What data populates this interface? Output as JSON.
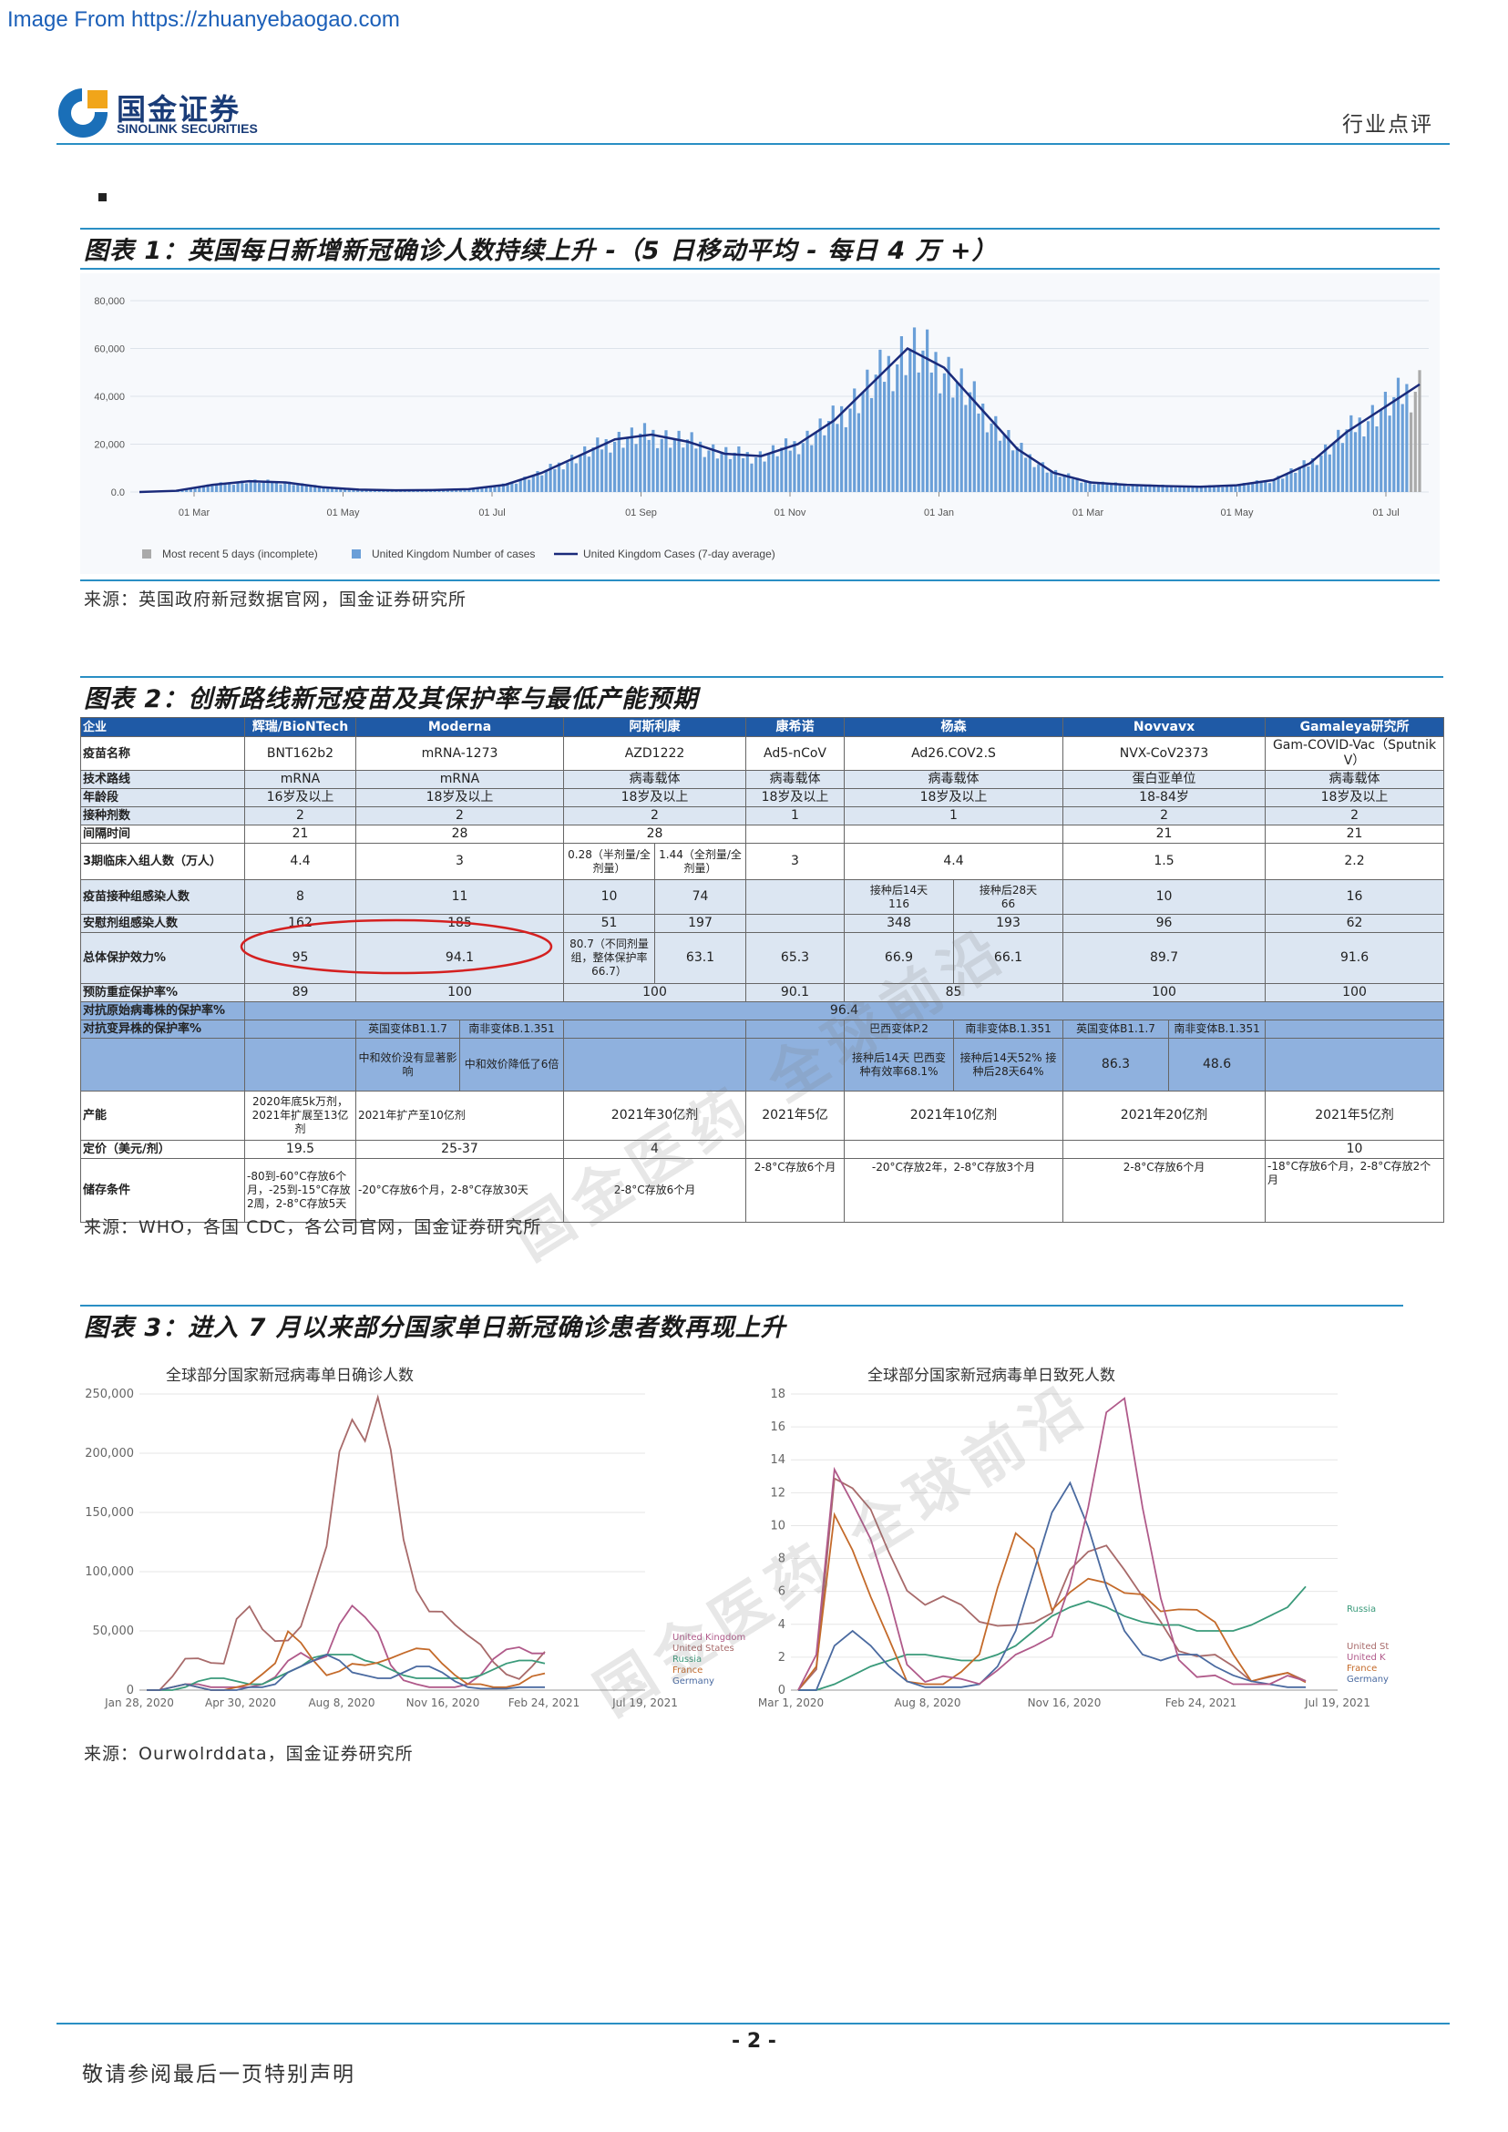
{
  "top_link": "Image From https://zhuanyebaogao.com",
  "header": {
    "logo_cn": "国金证券",
    "logo_en": "SINOLINK SECURITIES",
    "category": "行业点评"
  },
  "fig1": {
    "title": "图表 1：英国每日新增新冠确诊人数持续上升 -（5 日移动平均 - 每日 4 万 +）",
    "source": "来源：英国政府新冠数据官网，国金证券研究所",
    "chart_data": {
      "type": "bar",
      "x_ticks": [
        "01 Mar",
        "01 May",
        "01 Jul",
        "01 Sep",
        "01 Nov",
        "01 Jan",
        "01 Mar",
        "01 May",
        "01 Jul"
      ],
      "y_ticks": [
        "0.0",
        "20,000",
        "40,000",
        "60,000",
        "80,000"
      ],
      "ylim": [
        0,
        80000
      ],
      "legend": [
        "Most recent 5 days (incomplete)",
        "United Kingdom Number of cases",
        "United Kingdom Cases (7-day average)"
      ],
      "avg_series": [
        0,
        500,
        3000,
        4500,
        4000,
        2000,
        1000,
        700,
        800,
        1200,
        3000,
        8000,
        15000,
        22000,
        24000,
        21000,
        16000,
        15000,
        20000,
        30000,
        45000,
        60000,
        52000,
        35000,
        18000,
        8000,
        4000,
        3000,
        2500,
        2200,
        2800,
        5000,
        12000,
        25000,
        35000,
        45000
      ]
    }
  },
  "fig2": {
    "title": "图表 2：创新路线新冠疫苗及其保护率与最低产能预期",
    "source": "来源：WHO，各国 CDC，各公司官网，国金证券研究所",
    "watermark": "国金医药 全球前沿",
    "rows": {
      "r0": [
        "企业",
        "辉瑞/BioNTech",
        "Moderna",
        "阿斯利康",
        "康希诺",
        "杨森",
        "Novvavx",
        "Gamaleya研究所"
      ],
      "r1": [
        "疫苗名称",
        "BNT162b2",
        "mRNA-1273",
        "AZD1222",
        "Ad5-nCoV",
        "Ad26.COV2.S",
        "NVX-CoV2373",
        "Gam-COVID-Vac（Sputnik V）"
      ],
      "r2": [
        "技术路线",
        "mRNA",
        "mRNA",
        "病毒载体",
        "病毒载体",
        "病毒载体",
        "蛋白亚单位",
        "病毒载体"
      ],
      "r3": [
        "年龄段",
        "16岁及以上",
        "18岁及以上",
        "18岁及以上",
        "18岁及以上",
        "18岁及以上",
        "18-84岁",
        "18岁及以上"
      ],
      "r4": [
        "接种剂数",
        "2",
        "2",
        "2",
        "1",
        "1",
        "2",
        "2"
      ],
      "r5": [
        "间隔时间",
        "21",
        "28",
        "28",
        "",
        "",
        "21",
        "21"
      ],
      "r6": [
        "3期临床入组人数（万人）",
        "4.4",
        "3",
        "0.28（半剂量/全剂量）",
        "1.44（全剂量/全剂量）",
        "3",
        "4.4",
        "1.5",
        "2.2"
      ],
      "r7": [
        "疫苗接种组感染人数",
        "8",
        "11",
        "10",
        "74",
        "",
        "接种后14天",
        "接种后28天",
        "10",
        "16"
      ],
      "r7b": [
        "116",
        "66"
      ],
      "r8": [
        "安慰剂组感染人数",
        "162",
        "185",
        "51",
        "197",
        "",
        "348",
        "193",
        "96",
        "62"
      ],
      "r9": [
        "总体保护效力%",
        "95",
        "94.1",
        "80.7（不同剂量组，整体保护率66.7）",
        "63.1",
        "65.3",
        "66.9",
        "66.1",
        "89.7",
        "91.6"
      ],
      "r10": [
        "预防重症保护率%",
        "89",
        "100",
        "100",
        "90.1",
        "85",
        "100",
        "100"
      ],
      "r11": [
        "对抗原始病毒株的保护率%",
        "96.4"
      ],
      "r12": [
        "对抗变异株的保护率%",
        "英国变体B1.1.7",
        "南非变体B.1.351",
        "巴西变体P.2",
        "南非变体B.1.351",
        "英国变体B1.1.7",
        "南非变体B.1.351"
      ],
      "r13": [
        "中和效价没有显著影响",
        "中和效价降低了6倍",
        "接种后14天 巴西变种有效率68.1%",
        "接种后14天52% 接种后28天64%",
        "86.3",
        "48.6"
      ],
      "r14": [
        "产能",
        "2020年底5k万剂，2021年扩展至13亿剂",
        "2021年扩产至10亿剂",
        "2021年30亿剂",
        "2021年5亿",
        "2021年10亿剂",
        "2021年20亿剂",
        "2021年5亿剂"
      ],
      "r15": [
        "定价（美元/剂）",
        "19.5",
        "25-37",
        "4",
        "",
        "",
        "",
        "10"
      ],
      "r16": [
        "储存条件",
        "-80到-60°C存放6个月，-25到-15°C存放2周，2-8°C存放5天",
        "-20°C存放6个月，2-8°C存放30天",
        "2-8°C存放6个月",
        "2-8°C存放6个月",
        "-20°C存放2年，2-8°C存放3个月",
        "2-8°C存放6个月",
        "-18°C存放6个月，2-8°C存放2个月"
      ]
    }
  },
  "fig3": {
    "title": "图表 3：进入 7 月以来部分国家单日新冠确诊患者数再现上升",
    "source": "来源：Ourwolrddata，国金证券研究所",
    "left_chart": {
      "title": "全球部分国家新冠病毒单日确诊人数",
      "y_ticks": [
        "0",
        "50,000",
        "100,000",
        "150,000",
        "200,000",
        "250,000"
      ],
      "x_ticks": [
        "Jan 28, 2020",
        "Apr 30, 2020",
        "Aug 8, 2020",
        "Nov 16, 2020",
        "Feb 24, 2021",
        "Jul 19, 2021"
      ],
      "legend": [
        "United Kingdom",
        "United States",
        "Russia",
        "France",
        "Germany"
      ]
    },
    "right_chart": {
      "title": "全球部分国家新冠病毒单日致死人数",
      "y_ticks": [
        "0",
        "2",
        "4",
        "6",
        "8",
        "10",
        "12",
        "14",
        "16",
        "18"
      ],
      "x_ticks": [
        "Mar 1, 2020",
        "Aug 8, 2020",
        "Nov 16, 2020",
        "Feb 24, 2021",
        "Jul 19, 2021"
      ],
      "legend": [
        "Russia",
        "United St",
        "United K",
        "France",
        "Germany"
      ]
    },
    "colors": {
      "uk": "#b05a8a",
      "us": "#a86a6a",
      "russia": "#3a9a7a",
      "france": "#c46a2a",
      "germany": "#4a6aa0"
    }
  },
  "footer": {
    "page": "- 2 -",
    "note": "敬请参阅最后一页特别声明"
  }
}
